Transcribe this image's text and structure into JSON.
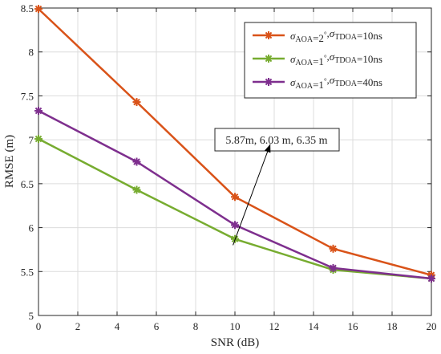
{
  "chart_data": {
    "type": "line",
    "title": "",
    "xlabel": "SNR (dB)",
    "ylabel": "RMSE (m)",
    "xlim": [
      0,
      20
    ],
    "ylim": [
      5,
      8.5
    ],
    "xticks": [
      0,
      2,
      4,
      6,
      8,
      10,
      12,
      14,
      16,
      18,
      20
    ],
    "yticks": [
      5,
      5.5,
      6,
      6.5,
      7,
      7.5,
      8,
      8.5
    ],
    "grid": true,
    "legend_position": "top-right",
    "x": [
      0,
      5,
      10,
      15,
      20
    ],
    "series": [
      {
        "name": "σ_AOA=2°, σ_TDOA=10ns",
        "legend": {
          "a": "σ",
          "b": "AOA",
          "c": "=2",
          "d": "°",
          "e": ",σ",
          "f": "TDOA",
          "g": "=10ns"
        },
        "color": "#D95319",
        "values": [
          8.49,
          7.43,
          6.35,
          5.76,
          5.46
        ]
      },
      {
        "name": "σ_AOA=1°, σ_TDOA=10ns",
        "legend": {
          "a": "σ",
          "b": "AOA",
          "c": "=1",
          "d": "°",
          "e": ",σ",
          "f": "TDOA",
          "g": "=10ns"
        },
        "color": "#77AC30",
        "values": [
          7.01,
          6.43,
          5.87,
          5.52,
          5.42
        ]
      },
      {
        "name": "σ_AOA=1°, σ_TDOA=40ns",
        "legend": {
          "a": "σ",
          "b": "AOA",
          "c": "=1",
          "d": "°",
          "e": ",σ",
          "f": "TDOA",
          "g": "=40ns"
        },
        "color": "#7E2F8E",
        "values": [
          7.33,
          6.75,
          6.03,
          5.54,
          5.42
        ]
      }
    ],
    "annotation": {
      "text": "5.87m, 6.03 m, 6.35 m",
      "arrow_from": [
        9.9,
        5.8
      ],
      "arrow_to": [
        11.8,
        6.95
      ],
      "box_anchor": [
        9.1,
        7.1
      ]
    }
  }
}
